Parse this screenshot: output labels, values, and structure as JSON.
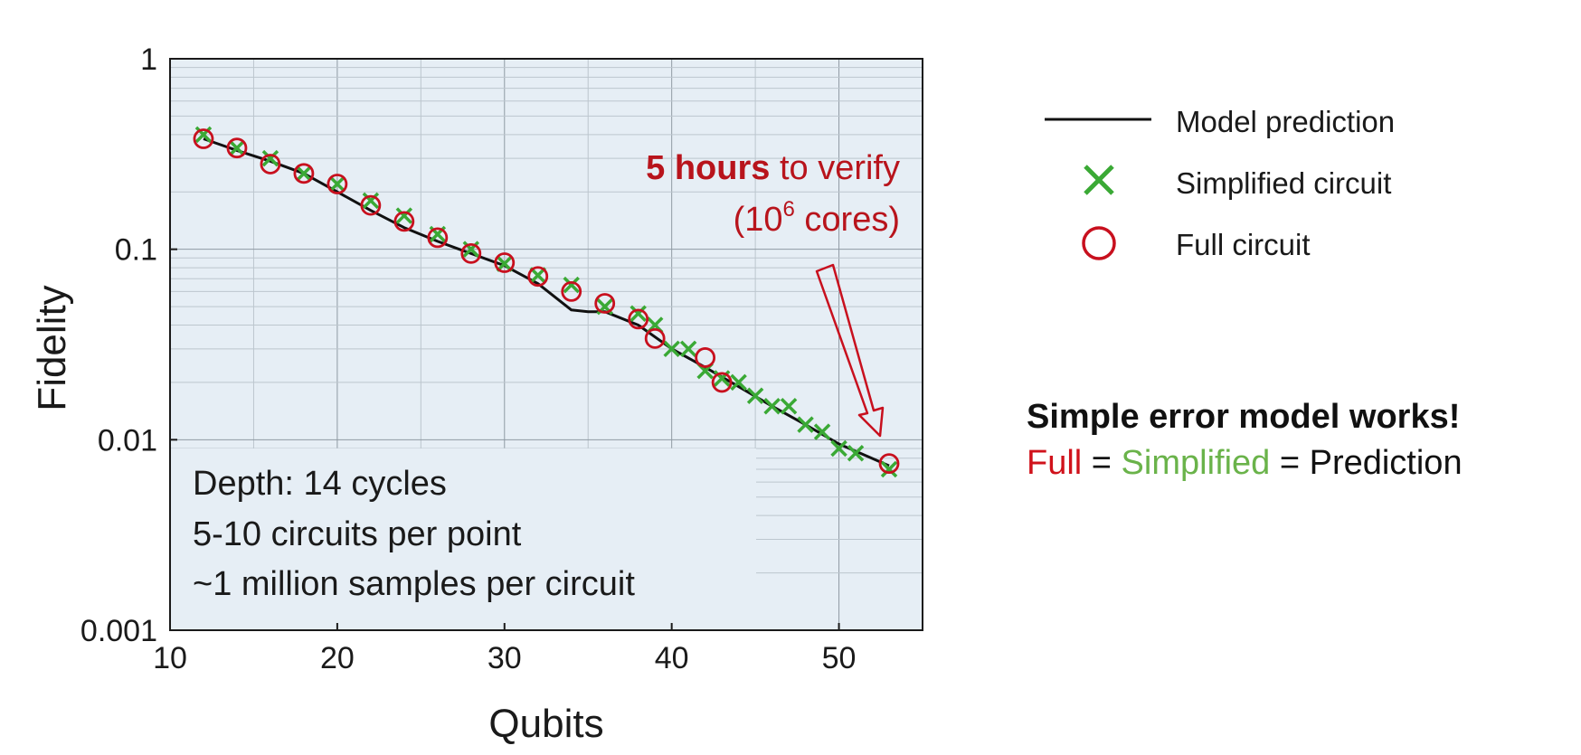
{
  "chart_data": {
    "type": "scatter",
    "xlabel": "Qubits",
    "ylabel": "Fidelity",
    "xlim": [
      10,
      55
    ],
    "ylim": [
      0.001,
      1
    ],
    "yscale": "log",
    "x_ticks": [
      10,
      20,
      30,
      40,
      50
    ],
    "x_tick_labels": [
      "10",
      "20",
      "30",
      "40",
      "50"
    ],
    "y_ticks": [
      0.001,
      0.01,
      0.1,
      1
    ],
    "y_tick_labels": [
      "0.001",
      "0.01",
      "0.1",
      "1"
    ],
    "grid": true,
    "legend_position": "right",
    "series": [
      {
        "name": "Model prediction",
        "kind": "line",
        "color": "#111111",
        "points": [
          [
            12,
            0.38
          ],
          [
            14,
            0.33
          ],
          [
            16,
            0.29
          ],
          [
            18,
            0.25
          ],
          [
            20,
            0.2
          ],
          [
            22,
            0.16
          ],
          [
            24,
            0.13
          ],
          [
            26,
            0.11
          ],
          [
            28,
            0.095
          ],
          [
            30,
            0.082
          ],
          [
            32,
            0.066
          ],
          [
            34,
            0.048
          ],
          [
            35,
            0.047
          ],
          [
            36,
            0.047
          ],
          [
            38,
            0.04
          ],
          [
            40,
            0.03
          ],
          [
            42,
            0.024
          ],
          [
            44,
            0.019
          ],
          [
            46,
            0.015
          ],
          [
            48,
            0.012
          ],
          [
            50,
            0.0095
          ],
          [
            53,
            0.0073
          ]
        ]
      },
      {
        "name": "Simplified circuit",
        "kind": "x-marker",
        "color": "#3aa935",
        "points": [
          [
            12,
            0.4
          ],
          [
            14,
            0.34
          ],
          [
            16,
            0.3
          ],
          [
            18,
            0.25
          ],
          [
            20,
            0.22
          ],
          [
            22,
            0.18
          ],
          [
            24,
            0.15
          ],
          [
            26,
            0.12
          ],
          [
            28,
            0.1
          ],
          [
            30,
            0.084
          ],
          [
            32,
            0.073
          ],
          [
            34,
            0.065
          ],
          [
            36,
            0.05
          ],
          [
            38,
            0.046
          ],
          [
            39,
            0.04
          ],
          [
            40,
            0.03
          ],
          [
            41,
            0.03
          ],
          [
            42,
            0.023
          ],
          [
            43,
            0.021
          ],
          [
            44,
            0.02
          ],
          [
            45,
            0.017
          ],
          [
            46,
            0.015
          ],
          [
            47,
            0.015
          ],
          [
            48,
            0.012
          ],
          [
            49,
            0.011
          ],
          [
            50,
            0.009
          ],
          [
            51,
            0.0085
          ],
          [
            53,
            0.007
          ]
        ]
      },
      {
        "name": "Full circuit",
        "kind": "circle-marker",
        "color": "#c8101e",
        "points": [
          [
            12,
            0.38
          ],
          [
            14,
            0.34
          ],
          [
            16,
            0.28
          ],
          [
            18,
            0.25
          ],
          [
            20,
            0.22
          ],
          [
            22,
            0.17
          ],
          [
            24,
            0.14
          ],
          [
            26,
            0.115
          ],
          [
            28,
            0.095
          ],
          [
            30,
            0.085
          ],
          [
            32,
            0.072
          ],
          [
            34,
            0.06
          ],
          [
            36,
            0.052
          ],
          [
            38,
            0.043
          ],
          [
            39,
            0.034
          ],
          [
            42,
            0.027
          ],
          [
            43,
            0.02
          ],
          [
            53,
            0.0075
          ]
        ]
      }
    ],
    "annotations": {
      "callout_bold": "5 hours",
      "callout_rest": " to verify",
      "callout_line2": "(10",
      "callout_sup": "6",
      "callout_line2_end": " cores)",
      "callout_color": "#b8141c",
      "info_lines": [
        "Depth: 14 cycles",
        "5-10 circuits per point",
        "~1 million samples per circuit"
      ]
    }
  },
  "legend": {
    "items": [
      "Model prediction",
      "Simplified circuit",
      "Full circuit"
    ]
  },
  "takeaway": {
    "heading": "Simple error model works!",
    "full": "Full",
    "eq1": " = ",
    "simplified": "Simplified",
    "eq2": " = ",
    "prediction": "Prediction",
    "full_color": "#d0121b",
    "simplified_color": "#6ab34a"
  }
}
